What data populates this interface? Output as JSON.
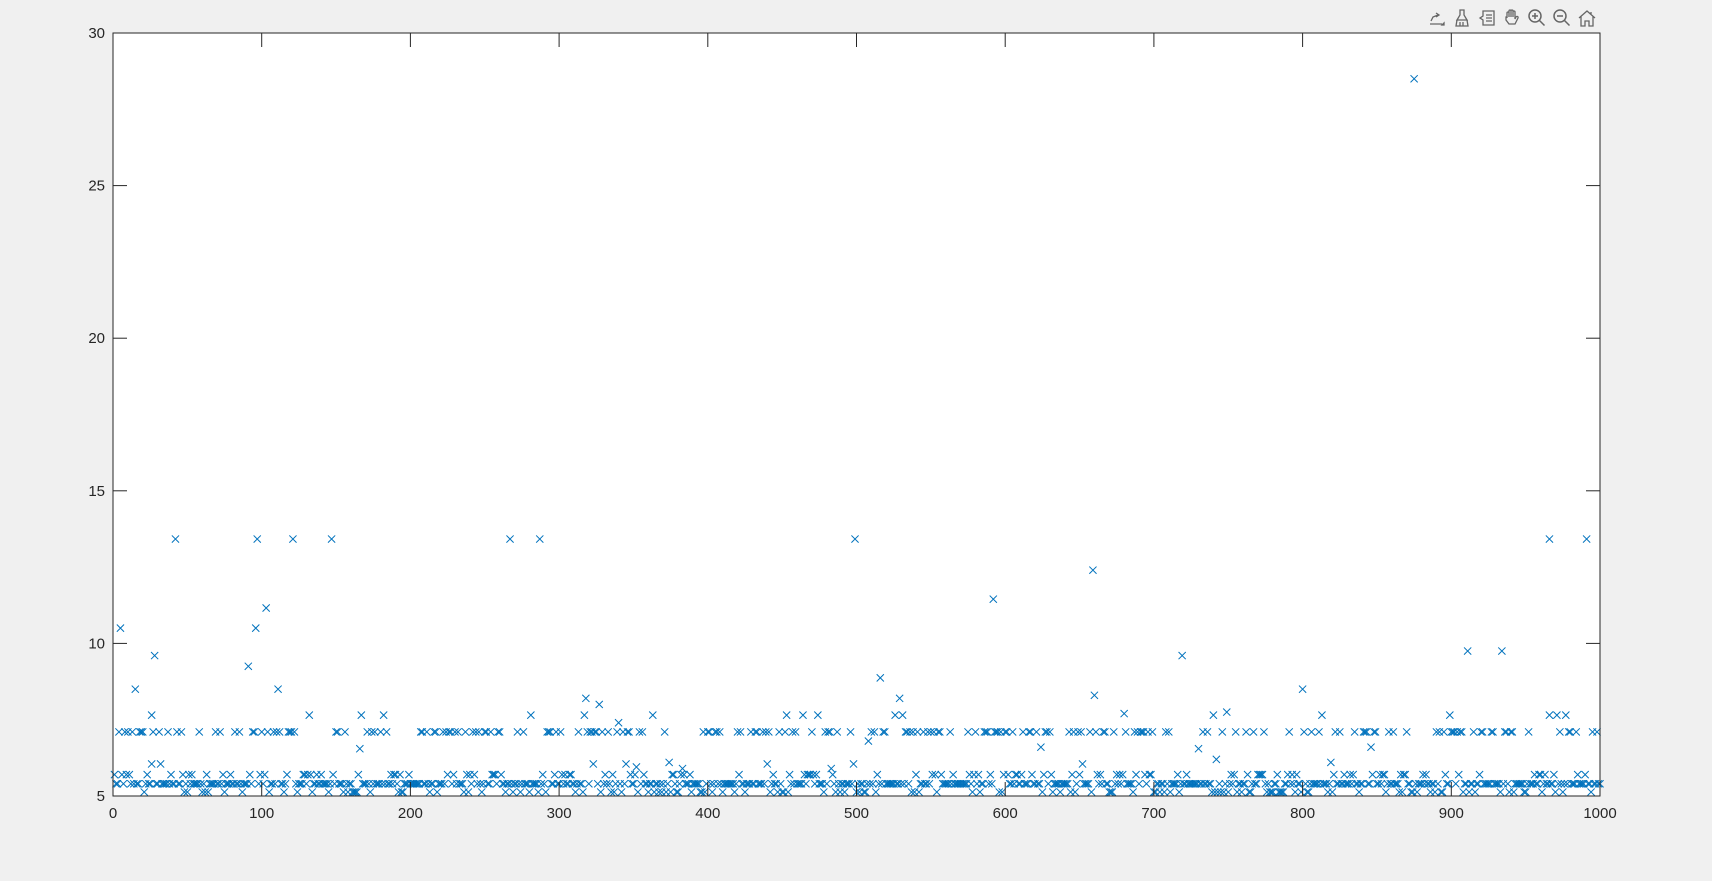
{
  "toolbar": {
    "icons": [
      "export-edit-icon",
      "brush-icon",
      "data-tips-icon",
      "pan-icon",
      "zoom-in-icon",
      "zoom-out-icon",
      "home-icon"
    ]
  },
  "chart_data": {
    "type": "scatter",
    "title": "",
    "xlabel": "",
    "ylabel": "",
    "xlim": [
      0,
      1000
    ],
    "ylim": [
      5,
      30
    ],
    "xticks": [
      0,
      100,
      200,
      300,
      400,
      500,
      600,
      700,
      800,
      900,
      1000
    ],
    "yticks": [
      5,
      10,
      15,
      20,
      25,
      30
    ],
    "grid": false,
    "box": true,
    "marker": "x",
    "color": "#0072BD",
    "n_points": 1000,
    "recurring_levels": [
      5.13,
      5.4,
      5.7,
      7.1
    ],
    "outliers": [
      [
        875,
        28.5
      ],
      [
        42,
        13.42
      ],
      [
        97,
        13.42
      ],
      [
        121,
        13.42
      ],
      [
        147,
        13.42
      ],
      [
        267,
        13.42
      ],
      [
        287,
        13.42
      ],
      [
        499,
        13.42
      ],
      [
        966,
        13.42
      ],
      [
        991,
        13.42
      ],
      [
        659,
        12.4
      ],
      [
        592,
        11.45
      ],
      [
        103,
        11.16
      ],
      [
        5,
        10.5
      ],
      [
        96,
        10.5
      ],
      [
        911,
        9.75
      ],
      [
        934,
        9.75
      ],
      [
        28,
        9.6
      ],
      [
        719,
        9.6
      ],
      [
        91,
        9.25
      ],
      [
        516,
        8.87
      ],
      [
        15,
        8.5
      ],
      [
        111,
        8.5
      ],
      [
        800,
        8.5
      ],
      [
        660,
        8.3
      ],
      [
        318,
        8.2
      ],
      [
        529,
        8.2
      ],
      [
        327,
        8.0
      ],
      [
        680,
        7.7
      ],
      [
        26,
        7.65
      ],
      [
        132,
        7.65
      ],
      [
        167,
        7.65
      ],
      [
        182,
        7.65
      ],
      [
        281,
        7.65
      ],
      [
        317,
        7.65
      ],
      [
        363,
        7.65
      ],
      [
        453,
        7.65
      ],
      [
        464,
        7.65
      ],
      [
        474,
        7.65
      ],
      [
        526,
        7.65
      ],
      [
        531,
        7.65
      ],
      [
        740,
        7.65
      ],
      [
        749,
        7.75
      ],
      [
        813,
        7.65
      ],
      [
        899,
        7.65
      ],
      [
        966,
        7.65
      ],
      [
        971,
        7.65
      ],
      [
        977,
        7.65
      ],
      [
        340,
        7.4
      ],
      [
        508,
        6.8
      ],
      [
        624,
        6.6
      ],
      [
        846,
        6.6
      ],
      [
        166,
        6.55
      ],
      [
        730,
        6.55
      ],
      [
        742,
        6.2
      ],
      [
        26,
        6.05
      ],
      [
        32,
        6.05
      ],
      [
        323,
        6.05
      ],
      [
        345,
        6.05
      ],
      [
        374,
        6.1
      ],
      [
        440,
        6.05
      ],
      [
        498,
        6.05
      ],
      [
        652,
        6.05
      ],
      [
        819,
        6.1
      ],
      [
        352,
        5.95
      ],
      [
        383,
        5.9
      ],
      [
        483,
        5.9
      ]
    ]
  }
}
